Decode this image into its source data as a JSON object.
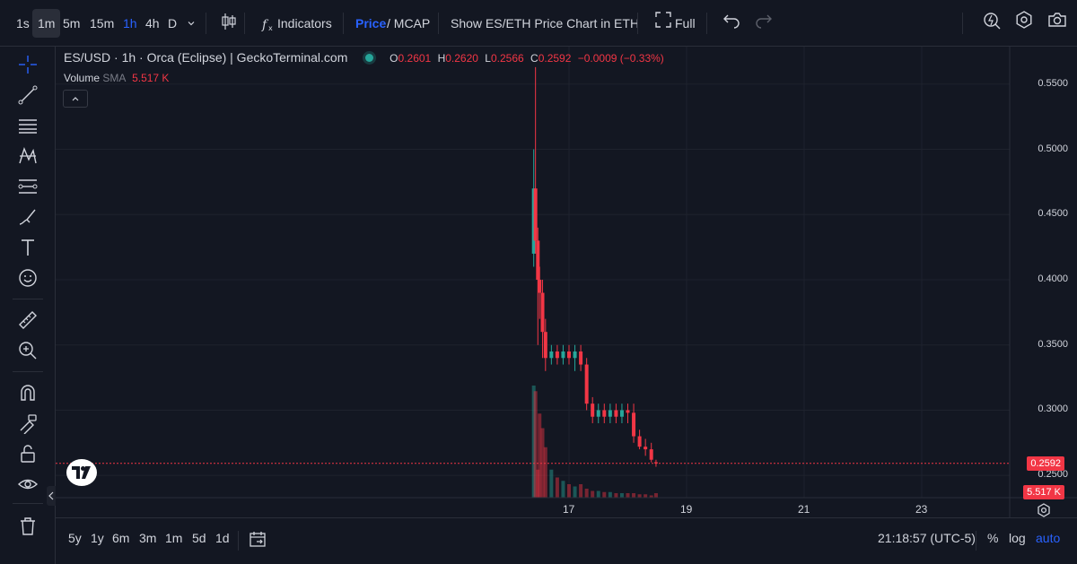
{
  "toolbar": {
    "intervals": [
      "1s",
      "1m",
      "5m",
      "15m",
      "1h",
      "4h",
      "D"
    ],
    "indicators_label": "Indicators",
    "price_label": "Price",
    "slash_mcap": "/ MCAP",
    "show_eth_label": "Show ES/ETH Price Chart in ETH",
    "full_label": "Full"
  },
  "legend": {
    "title": "ES/USD · 1h · Orca (Eclipse) | GeckoTerminal.com",
    "o_label": "O",
    "o_value": "0.2601",
    "h_label": "H",
    "h_value": "0.2620",
    "l_label": "L",
    "l_value": "0.2566",
    "c_label": "C",
    "c_value": "0.2592",
    "change": "−0.0009 (−0.33%)",
    "volume_label": "Volume",
    "volume_sma": "SMA",
    "volume_value": "5.517 K"
  },
  "price_axis": {
    "ticks": [
      "0.5500",
      "0.5000",
      "0.4500",
      "0.4000",
      "0.3500",
      "0.3000",
      "0.2500"
    ],
    "current_price_badge": "0.2592",
    "volume_badge": "5.517 K"
  },
  "time_axis": {
    "ticks": [
      "17",
      "19",
      "21",
      "23"
    ]
  },
  "bottom": {
    "ranges": [
      "5y",
      "1y",
      "6m",
      "3m",
      "1m",
      "5d",
      "1d"
    ],
    "clock": "21:18:57 (UTC-5)",
    "percent": "%",
    "log": "log",
    "auto": "auto"
  },
  "colors": {
    "up": "#26a69a",
    "down": "#f23645",
    "accent": "#2962ff",
    "background": "#131722"
  },
  "chart_data": {
    "type": "candlestick",
    "x_ticks": [
      "17",
      "19",
      "21",
      "23"
    ],
    "ylim": [
      0.235,
      0.565
    ],
    "price_series": [
      {
        "t": 16.4,
        "o": 0.42,
        "h": 0.5,
        "l": 0.41,
        "c": 0.47
      },
      {
        "t": 16.43,
        "o": 0.47,
        "h": 0.563,
        "l": 0.42,
        "c": 0.43
      },
      {
        "t": 16.47,
        "o": 0.43,
        "h": 0.44,
        "l": 0.35,
        "c": 0.4
      },
      {
        "t": 16.5,
        "o": 0.4,
        "h": 0.41,
        "l": 0.37,
        "c": 0.39
      },
      {
        "t": 16.55,
        "o": 0.39,
        "h": 0.4,
        "l": 0.34,
        "c": 0.36
      },
      {
        "t": 16.6,
        "o": 0.36,
        "h": 0.37,
        "l": 0.33,
        "c": 0.34
      },
      {
        "t": 16.7,
        "o": 0.34,
        "h": 0.35,
        "l": 0.335,
        "c": 0.345
      },
      {
        "t": 16.8,
        "o": 0.345,
        "h": 0.35,
        "l": 0.335,
        "c": 0.34
      },
      {
        "t": 16.9,
        "o": 0.34,
        "h": 0.35,
        "l": 0.335,
        "c": 0.345
      },
      {
        "t": 17.0,
        "o": 0.345,
        "h": 0.35,
        "l": 0.335,
        "c": 0.34
      },
      {
        "t": 17.1,
        "o": 0.34,
        "h": 0.35,
        "l": 0.33,
        "c": 0.345
      },
      {
        "t": 17.2,
        "o": 0.345,
        "h": 0.35,
        "l": 0.33,
        "c": 0.335
      },
      {
        "t": 17.3,
        "o": 0.335,
        "h": 0.34,
        "l": 0.3,
        "c": 0.305
      },
      {
        "t": 17.4,
        "o": 0.305,
        "h": 0.31,
        "l": 0.29,
        "c": 0.295
      },
      {
        "t": 17.5,
        "o": 0.295,
        "h": 0.305,
        "l": 0.29,
        "c": 0.3
      },
      {
        "t": 17.6,
        "o": 0.3,
        "h": 0.305,
        "l": 0.29,
        "c": 0.295
      },
      {
        "t": 17.7,
        "o": 0.295,
        "h": 0.305,
        "l": 0.29,
        "c": 0.3
      },
      {
        "t": 17.8,
        "o": 0.3,
        "h": 0.305,
        "l": 0.29,
        "c": 0.295
      },
      {
        "t": 17.9,
        "o": 0.295,
        "h": 0.305,
        "l": 0.29,
        "c": 0.3
      },
      {
        "t": 18.0,
        "o": 0.3,
        "h": 0.305,
        "l": 0.29,
        "c": 0.298
      },
      {
        "t": 18.1,
        "o": 0.298,
        "h": 0.305,
        "l": 0.275,
        "c": 0.28
      },
      {
        "t": 18.2,
        "o": 0.28,
        "h": 0.285,
        "l": 0.27,
        "c": 0.272
      },
      {
        "t": 18.3,
        "o": 0.272,
        "h": 0.278,
        "l": 0.265,
        "c": 0.27
      },
      {
        "t": 18.4,
        "o": 0.27,
        "h": 0.275,
        "l": 0.26,
        "c": 0.262
      },
      {
        "t": 18.48,
        "o": 0.2601,
        "h": 0.262,
        "l": 0.2566,
        "c": 0.2592
      }
    ],
    "volume_series": [
      {
        "t": 16.4,
        "v": 1.0
      },
      {
        "t": 16.43,
        "v": 0.95
      },
      {
        "t": 16.47,
        "v": 0.25
      },
      {
        "t": 16.5,
        "v": 0.75
      },
      {
        "t": 16.55,
        "v": 0.62
      },
      {
        "t": 16.6,
        "v": 0.45
      },
      {
        "t": 16.7,
        "v": 0.25
      },
      {
        "t": 16.8,
        "v": 0.18
      },
      {
        "t": 16.9,
        "v": 0.15
      },
      {
        "t": 17.0,
        "v": 0.12
      },
      {
        "t": 17.1,
        "v": 0.1
      },
      {
        "t": 17.2,
        "v": 0.12
      },
      {
        "t": 17.3,
        "v": 0.08
      },
      {
        "t": 17.4,
        "v": 0.06
      },
      {
        "t": 17.5,
        "v": 0.06
      },
      {
        "t": 17.6,
        "v": 0.05
      },
      {
        "t": 17.7,
        "v": 0.05
      },
      {
        "t": 17.8,
        "v": 0.04
      },
      {
        "t": 17.9,
        "v": 0.04
      },
      {
        "t": 18.0,
        "v": 0.04
      },
      {
        "t": 18.1,
        "v": 0.04
      },
      {
        "t": 18.2,
        "v": 0.03
      },
      {
        "t": 18.3,
        "v": 0.03
      },
      {
        "t": 18.4,
        "v": 0.02
      },
      {
        "t": 18.48,
        "v": 0.04
      }
    ]
  }
}
